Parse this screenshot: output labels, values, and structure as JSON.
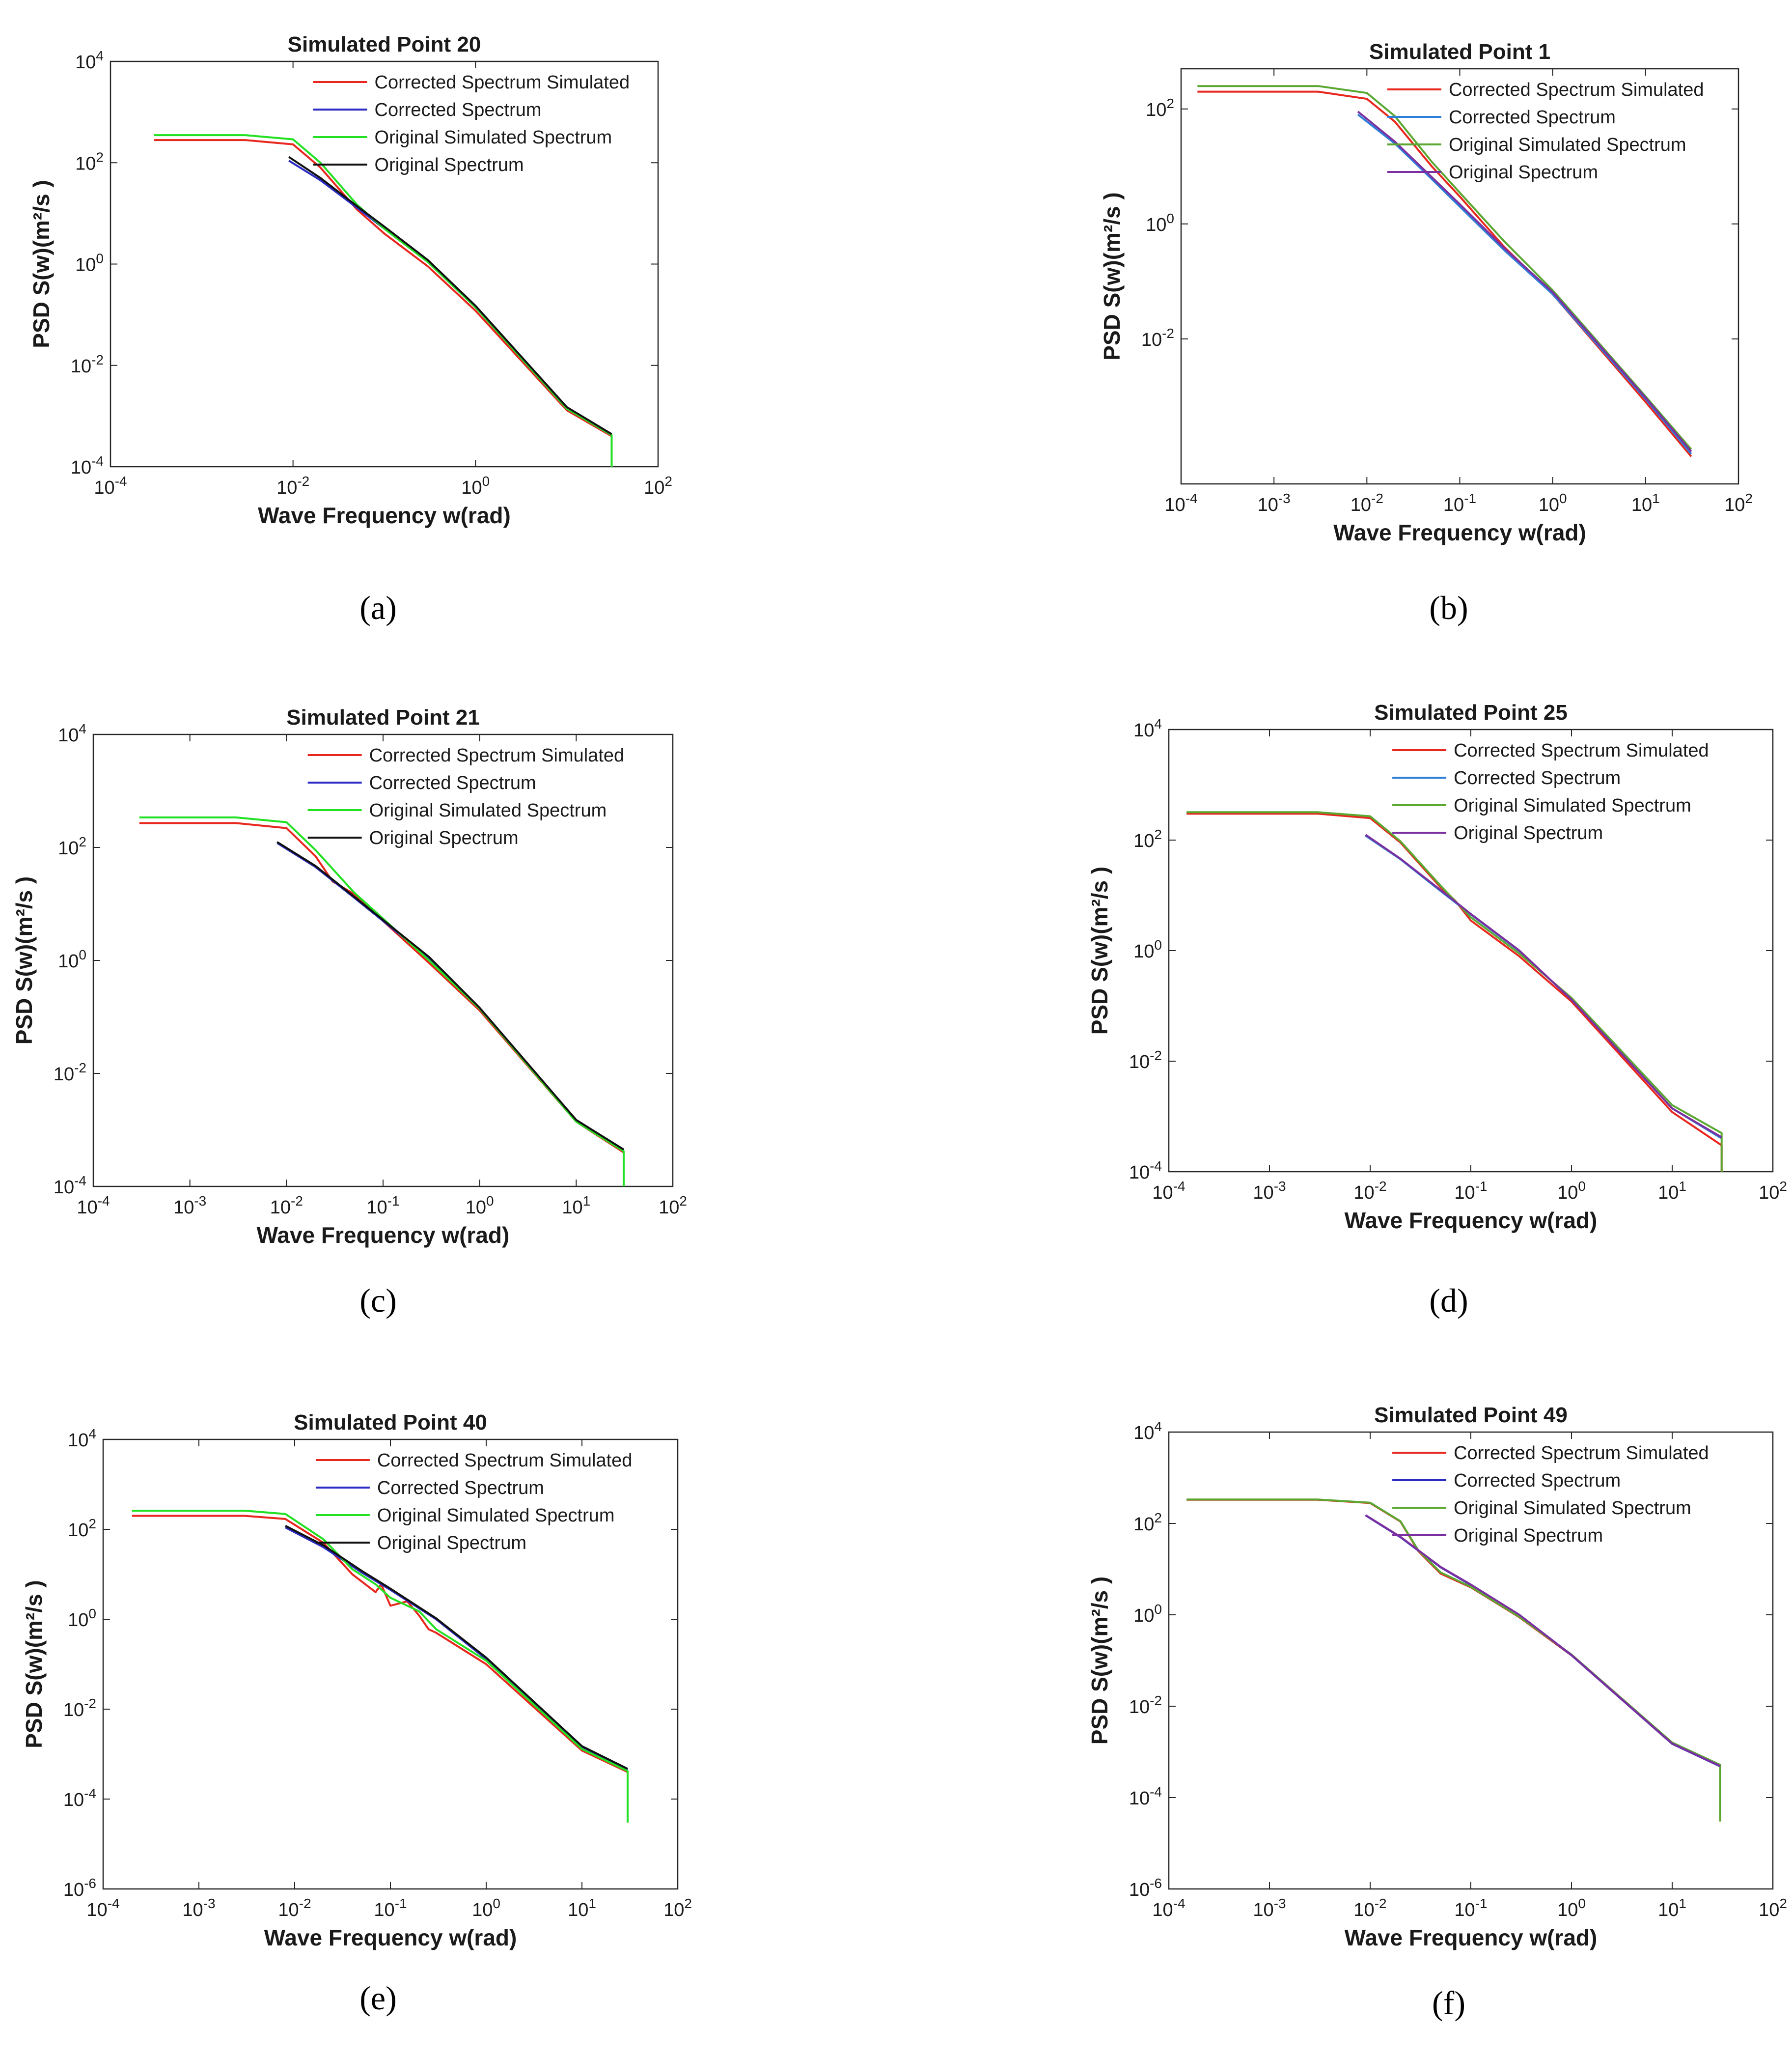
{
  "chart_data": [
    {
      "panel": "(a)",
      "type": "line",
      "title": "Simulated Point 20",
      "xlabel": "Wave Frequency w(rad)",
      "ylabel": "PSD S(w)(m²/s )",
      "xscale": "log",
      "yscale": "log",
      "xlim": [
        0.0001,
        100
      ],
      "ylim": [
        0.0001,
        10000
      ],
      "xticks": [
        "10-4",
        "10-2",
        "100",
        "102"
      ],
      "yticks": [
        "10-4",
        "10-2",
        "100",
        "102",
        "104"
      ],
      "legend_position": "top-right",
      "series": [
        {
          "name": "Corrected Spectrum Simulated",
          "color": "#e8271e",
          "x": [
            0.0003,
            0.003,
            0.01,
            0.02,
            0.05,
            0.1,
            0.3,
            1,
            10,
            31,
            31
          ],
          "y": [
            280,
            280,
            230,
            80,
            12,
            4,
            0.9,
            0.12,
            0.0013,
            0.0004,
            0.0001
          ]
        },
        {
          "name": "Corrected Spectrum",
          "color": "#2b2bc4",
          "x": [
            0.009,
            0.02,
            0.05,
            0.1,
            0.3,
            1,
            10,
            31
          ],
          "y": [
            110,
            45,
            13,
            5,
            1.1,
            0.14,
            0.0014,
            0.00042
          ]
        },
        {
          "name": "Original Simulated Spectrum",
          "color": "#22e022",
          "x": [
            0.0003,
            0.003,
            0.01,
            0.02,
            0.05,
            0.1,
            0.3,
            1,
            10,
            31,
            31
          ],
          "y": [
            350,
            350,
            290,
            100,
            15,
            5,
            1.1,
            0.14,
            0.0014,
            0.00042,
            0.0001
          ]
        },
        {
          "name": "Original Spectrum",
          "color": "#111111",
          "x": [
            0.009,
            0.02,
            0.05,
            0.1,
            0.3,
            1,
            10,
            31
          ],
          "y": [
            130,
            50,
            14,
            5.5,
            1.2,
            0.15,
            0.0015,
            0.00044
          ]
        }
      ]
    },
    {
      "panel": "(b)",
      "type": "line",
      "title": "Simulated Point 1",
      "xlabel": "Wave Frequency w(rad)",
      "ylabel": "PSD S(w)(m²/s )",
      "xscale": "log",
      "yscale": "log",
      "xlim": [
        0.0001,
        100
      ],
      "ylim": [
        3e-05,
        500
      ],
      "xticks": [
        "10-4",
        "10-3",
        "10-2",
        "10-1",
        "100",
        "101",
        "102"
      ],
      "yticks": [
        "10-2",
        "100",
        "102"
      ],
      "legend_position": "top-right",
      "series": [
        {
          "name": "Corrected Spectrum Simulated",
          "color": "#e8271e",
          "x": [
            0.00015,
            0.003,
            0.01,
            0.02,
            0.05,
            0.1,
            0.3,
            1,
            10,
            31
          ],
          "y": [
            200,
            200,
            150,
            60,
            10,
            3,
            0.4,
            0.06,
            0.0008,
            9e-05
          ]
        },
        {
          "name": "Corrected Spectrum",
          "color": "#2e7fd8",
          "x": [
            0.008,
            0.02,
            0.05,
            0.1,
            0.3,
            1,
            10,
            31
          ],
          "y": [
            80,
            25,
            6,
            2,
            0.35,
            0.06,
            0.0009,
            0.0001
          ]
        },
        {
          "name": "Original Simulated Spectrum",
          "color": "#5aa832",
          "x": [
            0.00015,
            0.003,
            0.01,
            0.02,
            0.05,
            0.1,
            0.3,
            1,
            10,
            31
          ],
          "y": [
            250,
            250,
            190,
            75,
            12,
            3.5,
            0.5,
            0.07,
            0.001,
            0.00012
          ]
        },
        {
          "name": "Original Spectrum",
          "color": "#7b2fa0",
          "x": [
            0.008,
            0.02,
            0.05,
            0.1,
            0.3,
            1,
            10,
            31
          ],
          "y": [
            90,
            27,
            6.5,
            2.2,
            0.38,
            0.065,
            0.00095,
            0.00011
          ]
        }
      ]
    },
    {
      "panel": "(c)",
      "type": "line",
      "title": "Simulated Point 21",
      "xlabel": "Wave Frequency w(rad)",
      "ylabel": "PSD S(w)(m²/s )",
      "xscale": "log",
      "yscale": "log",
      "xlim": [
        0.0001,
        100
      ],
      "ylim": [
        0.0001,
        10000
      ],
      "xticks": [
        "10-4",
        "10-3",
        "10-2",
        "10-1",
        "100",
        "101",
        "102"
      ],
      "yticks": [
        "10-4",
        "10-2",
        "100",
        "102",
        "104"
      ],
      "legend_position": "top-right",
      "series": [
        {
          "name": "Corrected Spectrum Simulated",
          "color": "#e8271e",
          "x": [
            0.0003,
            0.003,
            0.01,
            0.02,
            0.03,
            0.05,
            0.1,
            0.3,
            1,
            10,
            31,
            31
          ],
          "y": [
            270,
            270,
            220,
            70,
            25,
            15,
            5,
            0.9,
            0.13,
            0.0014,
            0.0004,
            0.0001
          ]
        },
        {
          "name": "Corrected Spectrum",
          "color": "#2b2bc4",
          "x": [
            0.008,
            0.02,
            0.05,
            0.1,
            0.3,
            1,
            10,
            31
          ],
          "y": [
            120,
            45,
            13,
            5,
            1.1,
            0.14,
            0.0015,
            0.00044
          ]
        },
        {
          "name": "Original Simulated Spectrum",
          "color": "#22e022",
          "x": [
            0.0003,
            0.003,
            0.01,
            0.02,
            0.05,
            0.1,
            0.3,
            1,
            10,
            31,
            31
          ],
          "y": [
            340,
            340,
            280,
            90,
            16,
            5.5,
            1.0,
            0.14,
            0.0014,
            0.00042,
            0.0001
          ]
        },
        {
          "name": "Original Spectrum",
          "color": "#111111",
          "x": [
            0.008,
            0.02,
            0.05,
            0.1,
            0.3,
            1,
            10,
            31
          ],
          "y": [
            125,
            47,
            13.5,
            5.2,
            1.15,
            0.145,
            0.0015,
            0.00045
          ]
        }
      ]
    },
    {
      "panel": "(d)",
      "type": "line",
      "title": "Simulated Point 25",
      "xlabel": "Wave Frequency w(rad)",
      "ylabel": "PSD S(w)(m²/s )",
      "xscale": "log",
      "yscale": "log",
      "xlim": [
        0.0001,
        100
      ],
      "ylim": [
        0.0001,
        10000
      ],
      "xticks": [
        "10-4",
        "10-3",
        "10-2",
        "10-1",
        "100",
        "101",
        "102"
      ],
      "yticks": [
        "10-4",
        "10-2",
        "100",
        "102",
        "104"
      ],
      "legend_position": "top-right",
      "series": [
        {
          "name": "Corrected Spectrum Simulated",
          "color": "#e8271e",
          "x": [
            0.00015,
            0.003,
            0.01,
            0.02,
            0.05,
            0.07,
            0.1,
            0.3,
            1,
            10,
            31,
            31
          ],
          "y": [
            300,
            300,
            250,
            90,
            14,
            8,
            3.5,
            0.8,
            0.12,
            0.0012,
            0.0003,
            0.0001
          ]
        },
        {
          "name": "Corrected Spectrum",
          "color": "#2e7fd8",
          "x": [
            0.009,
            0.02,
            0.05,
            0.1,
            0.3,
            1,
            10,
            31
          ],
          "y": [
            120,
            45,
            12,
            4.5,
            1.0,
            0.13,
            0.0014,
            0.0004
          ]
        },
        {
          "name": "Original Simulated Spectrum",
          "color": "#5aa832",
          "x": [
            0.00015,
            0.003,
            0.01,
            0.02,
            0.05,
            0.1,
            0.3,
            1,
            10,
            31,
            31
          ],
          "y": [
            320,
            320,
            270,
            95,
            15,
            4,
            0.9,
            0.14,
            0.0016,
            0.0005,
            0.0001
          ]
        },
        {
          "name": "Original Spectrum",
          "color": "#7b2fa0",
          "x": [
            0.009,
            0.02,
            0.05,
            0.1,
            0.3,
            1,
            10,
            31
          ],
          "y": [
            125,
            46,
            12.5,
            4.6,
            1.02,
            0.13,
            0.0014,
            0.00042
          ]
        }
      ]
    },
    {
      "panel": "(e)",
      "type": "line",
      "title": "Simulated Point 40",
      "xlabel": "Wave Frequency w(rad)",
      "ylabel": "PSD S(w)(m²/s )",
      "xscale": "log",
      "yscale": "log",
      "xlim": [
        0.0001,
        100
      ],
      "ylim": [
        1e-06,
        10000
      ],
      "xticks": [
        "10-4",
        "10-3",
        "10-2",
        "10-1",
        "100",
        "101",
        "102"
      ],
      "yticks": [
        "10-6",
        "10-4",
        "10-2",
        "100",
        "102",
        "104"
      ],
      "legend_position": "top-right",
      "series": [
        {
          "name": "Corrected Spectrum Simulated",
          "color": "#e8271e",
          "x": [
            0.0002,
            0.003,
            0.008,
            0.02,
            0.04,
            0.07,
            0.08,
            0.1,
            0.15,
            0.2,
            0.25,
            0.3,
            1,
            10,
            30,
            30
          ],
          "y": [
            200,
            200,
            170,
            50,
            10,
            4,
            6,
            2,
            2.5,
            1.2,
            0.6,
            0.5,
            0.1,
            0.0012,
            0.0004,
            3e-05
          ]
        },
        {
          "name": "Corrected Spectrum",
          "color": "#2b2bc4",
          "x": [
            0.008,
            0.02,
            0.05,
            0.1,
            0.3,
            1,
            10,
            30
          ],
          "y": [
            110,
            40,
            11,
            4.5,
            1.0,
            0.13,
            0.0014,
            0.00045
          ]
        },
        {
          "name": "Original Simulated Spectrum",
          "color": "#22e022",
          "x": [
            0.0002,
            0.003,
            0.008,
            0.02,
            0.04,
            0.07,
            0.1,
            0.2,
            0.3,
            1,
            10,
            30,
            30
          ],
          "y": [
            260,
            260,
            220,
            60,
            13,
            6,
            3,
            1.5,
            0.6,
            0.12,
            0.0013,
            0.00042,
            3e-05
          ]
        },
        {
          "name": "Original Spectrum",
          "color": "#111111",
          "x": [
            0.008,
            0.02,
            0.05,
            0.1,
            0.3,
            1,
            10,
            30
          ],
          "y": [
            120,
            44,
            12,
            4.8,
            1.05,
            0.14,
            0.0015,
            0.00047
          ]
        }
      ]
    },
    {
      "panel": "(f)",
      "type": "line",
      "title": "Simulated Point 49",
      "xlabel": "Wave Frequency w(rad)",
      "ylabel": "PSD S(w)(m²/s )",
      "xscale": "log",
      "yscale": "log",
      "xlim": [
        0.0001,
        100
      ],
      "ylim": [
        1e-06,
        10000
      ],
      "xticks": [
        "10-4",
        "10-3",
        "10-2",
        "10-1",
        "100",
        "101",
        "102"
      ],
      "yticks": [
        "10-6",
        "10-4",
        "10-2",
        "100",
        "102",
        "104"
      ],
      "legend_position": "top-right",
      "series": [
        {
          "name": "Corrected Spectrum Simulated",
          "color": "#e8271e",
          "x": [
            0.00015,
            0.003,
            0.01,
            0.02,
            0.03,
            0.05,
            0.08,
            0.1,
            0.3,
            1,
            10,
            30,
            30
          ],
          "y": [
            330,
            330,
            280,
            110,
            25,
            8,
            5,
            4,
            0.9,
            0.13,
            0.0015,
            0.0005,
            3e-05
          ]
        },
        {
          "name": "Corrected Spectrum",
          "color": "#2b2bc4",
          "x": [
            0.009,
            0.02,
            0.05,
            0.1,
            0.3,
            1,
            10,
            30
          ],
          "y": [
            150,
            50,
            11,
            4.5,
            1.0,
            0.13,
            0.0015,
            0.00048
          ]
        },
        {
          "name": "Original Simulated Spectrum",
          "color": "#5aa832",
          "x": [
            0.00015,
            0.003,
            0.01,
            0.02,
            0.03,
            0.05,
            0.1,
            0.3,
            1,
            10,
            30,
            30
          ],
          "y": [
            335,
            335,
            285,
            112,
            26,
            8.5,
            4.1,
            0.92,
            0.135,
            0.0016,
            0.00052,
            3e-05
          ]
        },
        {
          "name": "Original Spectrum",
          "color": "#7b2fa0",
          "x": [
            0.009,
            0.02,
            0.05,
            0.1,
            0.3,
            1,
            10,
            30
          ],
          "y": [
            152,
            51,
            11.2,
            4.6,
            1.02,
            0.132,
            0.00152,
            0.00049
          ]
        }
      ]
    }
  ]
}
